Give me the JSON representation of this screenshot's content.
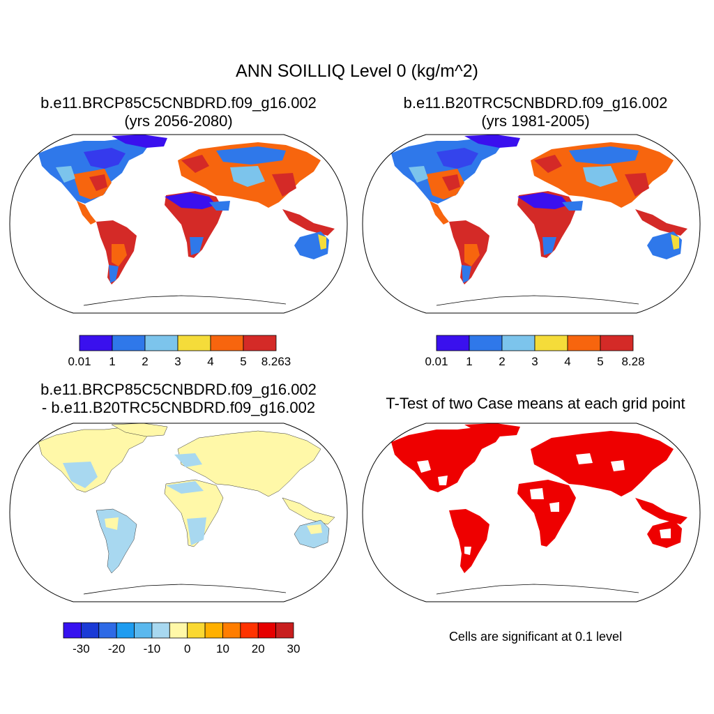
{
  "main_title": "ANN SOILLIQ Level 0 (kg/m^2)",
  "panels": [
    {
      "title_line1": "b.e11.BRCP85C5CNBDRD.f09_g16.002",
      "title_line2": "(yrs 2056-2080)"
    },
    {
      "title_line1": "b.e11.B20TRC5CNBDRD.f09_g16.002",
      "title_line2": "(yrs 1981-2005)"
    },
    {
      "title_line1": "b.e11.BRCP85C5CNBDRD.f09_g16.002",
      "title_line2": "- b.e11.B20TRC5CNBDRD.f09_g16.002"
    },
    {
      "title_line1": "T-Test of two Case means at each grid point"
    }
  ],
  "significance_note": "Cells are significant at 0.1 level",
  "colorbars": {
    "cb1": {
      "colors": [
        "#3a10ee",
        "#2f78ea",
        "#7cc4ec",
        "#f5dc3a",
        "#f7650e",
        "#d42a27"
      ],
      "labels": [
        "0.01",
        "1",
        "2",
        "3",
        "4",
        "5",
        "8.263"
      ]
    },
    "cb2": {
      "colors": [
        "#3a10ee",
        "#2f78ea",
        "#7cc4ec",
        "#f5dc3a",
        "#f7650e",
        "#d42a27"
      ],
      "labels": [
        "0.01",
        "1",
        "2",
        "3",
        "4",
        "5",
        "8.28"
      ]
    },
    "cb3": {
      "colors": [
        "#3612f0",
        "#1a3ad6",
        "#2e6ae6",
        "#1e9cf0",
        "#5ab8ee",
        "#a8d8f0",
        "#fff8a8",
        "#fad832",
        "#ffb000",
        "#ff7d00",
        "#ff3300",
        "#e60000",
        "#c81e1e"
      ],
      "labels": [
        "-30",
        "-20",
        "-10",
        "0",
        "10",
        "20",
        "30"
      ]
    }
  },
  "map_colors": {
    "land_dry": "#3a10ee",
    "land_blue": "#2f78ea",
    "land_light": "#7cc4ec",
    "land_yellow": "#f5dc3a",
    "land_orange": "#f7650e",
    "land_red": "#d42a27",
    "diff_light_blue": "#a8d8f0",
    "diff_pale_yellow": "#fff8a8",
    "significant": "#ee0000"
  }
}
